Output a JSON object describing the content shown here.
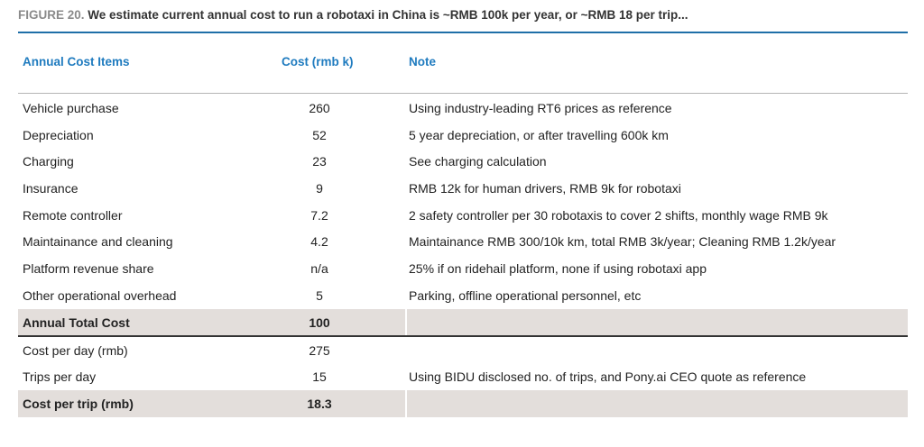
{
  "figure": {
    "label": "FIGURE 20.",
    "title": "We estimate current annual cost to run a robotaxi in China is ~RMB 100k per year, or ~RMB 18 per trip..."
  },
  "table": {
    "headers": {
      "item": "Annual Cost Items",
      "cost": "Cost (rmb k)",
      "note": "Note"
    },
    "rows": [
      {
        "item": "Vehicle purchase",
        "cost": "260",
        "note": "Using industry-leading RT6 prices as reference"
      },
      {
        "item": "Depreciation",
        "cost": "52",
        "note": "5 year depreciation, or after travelling 600k km"
      },
      {
        "item": "Charging",
        "cost": "23",
        "note": "See charging calculation"
      },
      {
        "item": "Insurance",
        "cost": "9",
        "note": "RMB 12k for human drivers, RMB 9k for robotaxi"
      },
      {
        "item": "Remote controller",
        "cost": "7.2",
        "note": "2 safety controller per 30 robotaxis to cover 2 shifts, monthly wage RMB 9k"
      },
      {
        "item": "Maintainance and cleaning",
        "cost": "4.2",
        "note": "Maintainance RMB 300/10k km, total RMB 3k/year; Cleaning RMB 1.2k/year"
      },
      {
        "item": "Platform revenue share",
        "cost": "n/a",
        "note": "25% if on ridehail platform, none if using robotaxi app"
      },
      {
        "item": "Other operational overhead",
        "cost": "5",
        "note": "Parking, offline operational personnel, etc"
      }
    ],
    "total": {
      "item": "Annual Total Cost",
      "cost": "100",
      "note": ""
    },
    "per_trip_rows": [
      {
        "item": "Cost per day (rmb)",
        "cost": "275",
        "note": ""
      },
      {
        "item": "Trips per day",
        "cost": "15",
        "note": "Using BIDU disclosed no. of trips, and Pony.ai CEO quote as reference"
      }
    ],
    "per_trip_total": {
      "item": "Cost per trip (rmb)",
      "cost": "18.3",
      "note": ""
    }
  }
}
